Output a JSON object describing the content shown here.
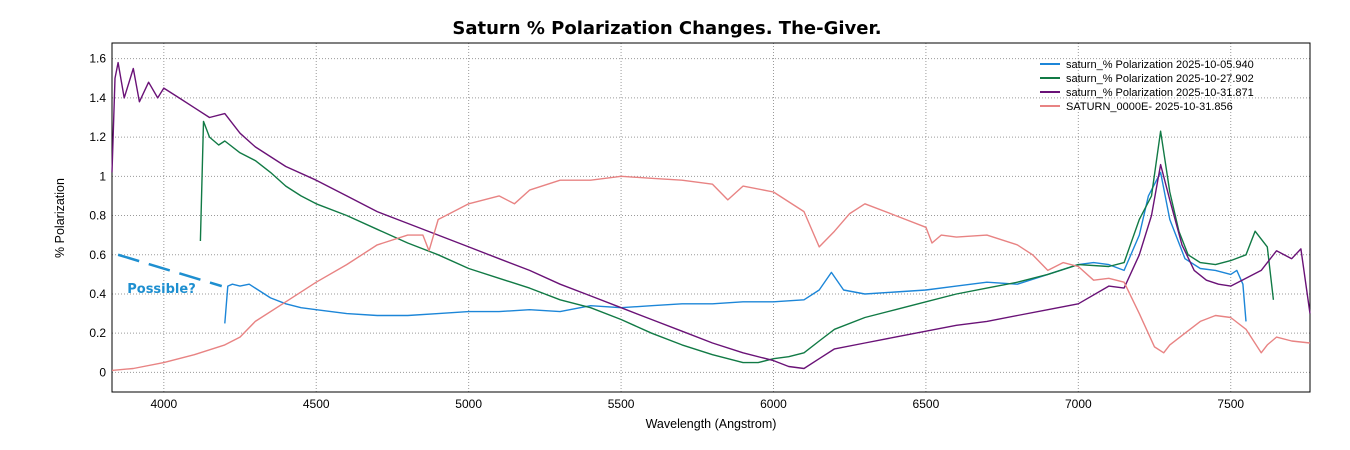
{
  "chart_data": {
    "type": "line",
    "title": "Saturn  %  Polarization  Changes.  The-Giver.",
    "xlabel": "Wavelength (Angstrom)",
    "ylabel": "% Polarization",
    "xlim": [
      3830,
      7760
    ],
    "ylim": [
      -0.1,
      1.68
    ],
    "xticks": [
      4000,
      4500,
      5000,
      5500,
      6000,
      6500,
      7000,
      7500
    ],
    "yticks": [
      0,
      0.2,
      0.4,
      0.6,
      0.8,
      1,
      1.2,
      1.4,
      1.6
    ],
    "ytick_labels": [
      "0",
      "0.2",
      "0.4",
      "0.6",
      "0.8",
      "1",
      "1.2",
      "1.4",
      "1.6"
    ],
    "grid": true,
    "legend_position": "top-right",
    "series": [
      {
        "name": "saturn_% Polarization  2025-10-05.940",
        "color": "#1c86d8",
        "x": [
          4200,
          4210,
          4225,
          4250,
          4280,
          4300,
          4350,
          4400,
          4450,
          4500,
          4600,
          4700,
          4800,
          4900,
          5000,
          5100,
          5200,
          5300,
          5400,
          5500,
          5600,
          5700,
          5800,
          5900,
          6000,
          6100,
          6150,
          6190,
          6230,
          6300,
          6400,
          6500,
          6600,
          6700,
          6800,
          6900,
          7000,
          7050,
          7100,
          7150,
          7200,
          7230,
          7270,
          7300,
          7350,
          7400,
          7450,
          7500,
          7520,
          7540,
          7550
        ],
        "y": [
          0.25,
          0.44,
          0.45,
          0.44,
          0.45,
          0.43,
          0.38,
          0.35,
          0.33,
          0.32,
          0.3,
          0.29,
          0.29,
          0.3,
          0.31,
          0.31,
          0.32,
          0.31,
          0.34,
          0.33,
          0.34,
          0.35,
          0.35,
          0.36,
          0.36,
          0.37,
          0.42,
          0.51,
          0.42,
          0.4,
          0.41,
          0.42,
          0.44,
          0.46,
          0.45,
          0.5,
          0.55,
          0.56,
          0.55,
          0.52,
          0.7,
          0.9,
          1.02,
          0.78,
          0.58,
          0.53,
          0.52,
          0.5,
          0.52,
          0.45,
          0.26
        ]
      },
      {
        "name": "saturn_% Polarization  2025-10-27.902",
        "color": "#117a45",
        "x": [
          4120,
          4130,
          4150,
          4180,
          4200,
          4250,
          4300,
          4350,
          4400,
          4450,
          4500,
          4600,
          4700,
          4800,
          4900,
          5000,
          5100,
          5200,
          5300,
          5400,
          5500,
          5600,
          5700,
          5800,
          5900,
          5950,
          6000,
          6050,
          6100,
          6150,
          6200,
          6300,
          6400,
          6500,
          6600,
          6700,
          6800,
          6900,
          7000,
          7100,
          7150,
          7200,
          7240,
          7270,
          7300,
          7330,
          7360,
          7400,
          7450,
          7500,
          7550,
          7580,
          7600,
          7620,
          7640
        ],
        "y": [
          0.67,
          1.28,
          1.2,
          1.16,
          1.18,
          1.12,
          1.08,
          1.02,
          0.95,
          0.9,
          0.86,
          0.8,
          0.73,
          0.66,
          0.6,
          0.53,
          0.48,
          0.43,
          0.37,
          0.33,
          0.27,
          0.2,
          0.14,
          0.09,
          0.05,
          0.05,
          0.07,
          0.08,
          0.1,
          0.16,
          0.22,
          0.28,
          0.32,
          0.36,
          0.4,
          0.43,
          0.46,
          0.5,
          0.55,
          0.54,
          0.56,
          0.78,
          0.9,
          1.23,
          0.92,
          0.72,
          0.6,
          0.56,
          0.55,
          0.57,
          0.6,
          0.72,
          0.68,
          0.64,
          0.37
        ]
      },
      {
        "name": "saturn_% Polarization  2025-10-31.871",
        "color": "#6a1277",
        "x": [
          3830,
          3840,
          3850,
          3870,
          3900,
          3920,
          3950,
          3980,
          4000,
          4050,
          4100,
          4150,
          4200,
          4250,
          4300,
          4400,
          4500,
          4600,
          4700,
          4800,
          4900,
          5000,
          5100,
          5200,
          5300,
          5400,
          5500,
          5600,
          5700,
          5800,
          5900,
          6000,
          6050,
          6100,
          6150,
          6200,
          6300,
          6400,
          6500,
          6600,
          6700,
          6800,
          6900,
          7000,
          7100,
          7150,
          7200,
          7240,
          7270,
          7300,
          7340,
          7380,
          7420,
          7460,
          7500,
          7550,
          7600,
          7650,
          7700,
          7730,
          7760
        ],
        "y": [
          1.02,
          1.5,
          1.58,
          1.4,
          1.55,
          1.38,
          1.48,
          1.4,
          1.45,
          1.4,
          1.35,
          1.3,
          1.32,
          1.22,
          1.15,
          1.05,
          0.98,
          0.9,
          0.82,
          0.76,
          0.7,
          0.64,
          0.58,
          0.52,
          0.45,
          0.39,
          0.33,
          0.27,
          0.21,
          0.15,
          0.1,
          0.06,
          0.03,
          0.02,
          0.07,
          0.12,
          0.15,
          0.18,
          0.21,
          0.24,
          0.26,
          0.29,
          0.32,
          0.35,
          0.44,
          0.43,
          0.6,
          0.8,
          1.06,
          0.88,
          0.65,
          0.52,
          0.47,
          0.45,
          0.44,
          0.48,
          0.52,
          0.62,
          0.58,
          0.63,
          0.3
        ]
      },
      {
        "name": "SATURN_0000E-  2025-10-31.856",
        "color": "#e88383",
        "x": [
          3830,
          3900,
          4000,
          4100,
          4200,
          4250,
          4300,
          4400,
          4500,
          4600,
          4700,
          4800,
          4850,
          4870,
          4900,
          5000,
          5100,
          5150,
          5200,
          5300,
          5400,
          5500,
          5600,
          5700,
          5800,
          5850,
          5900,
          6000,
          6100,
          6150,
          6200,
          6250,
          6300,
          6400,
          6500,
          6520,
          6550,
          6600,
          6700,
          6800,
          6850,
          6900,
          6950,
          7000,
          7050,
          7100,
          7150,
          7200,
          7250,
          7280,
          7300,
          7350,
          7400,
          7450,
          7500,
          7550,
          7600,
          7620,
          7650,
          7700,
          7760
        ],
        "y": [
          0.01,
          0.02,
          0.05,
          0.09,
          0.14,
          0.18,
          0.26,
          0.36,
          0.46,
          0.55,
          0.65,
          0.7,
          0.7,
          0.62,
          0.78,
          0.86,
          0.9,
          0.86,
          0.93,
          0.98,
          0.98,
          1.0,
          0.99,
          0.98,
          0.96,
          0.88,
          0.95,
          0.92,
          0.82,
          0.64,
          0.72,
          0.81,
          0.86,
          0.8,
          0.74,
          0.66,
          0.7,
          0.69,
          0.7,
          0.65,
          0.6,
          0.52,
          0.56,
          0.54,
          0.47,
          0.48,
          0.46,
          0.3,
          0.13,
          0.1,
          0.14,
          0.2,
          0.26,
          0.29,
          0.28,
          0.22,
          0.1,
          0.14,
          0.18,
          0.16,
          0.15
        ]
      }
    ],
    "annotations": [
      {
        "text": "Possible?",
        "color": "#1e8fd0",
        "dashed_line": {
          "x": [
            3850,
            4190
          ],
          "y": [
            0.6,
            0.44
          ]
        },
        "label_at": {
          "x": 3880,
          "y": 0.43
        }
      }
    ]
  }
}
